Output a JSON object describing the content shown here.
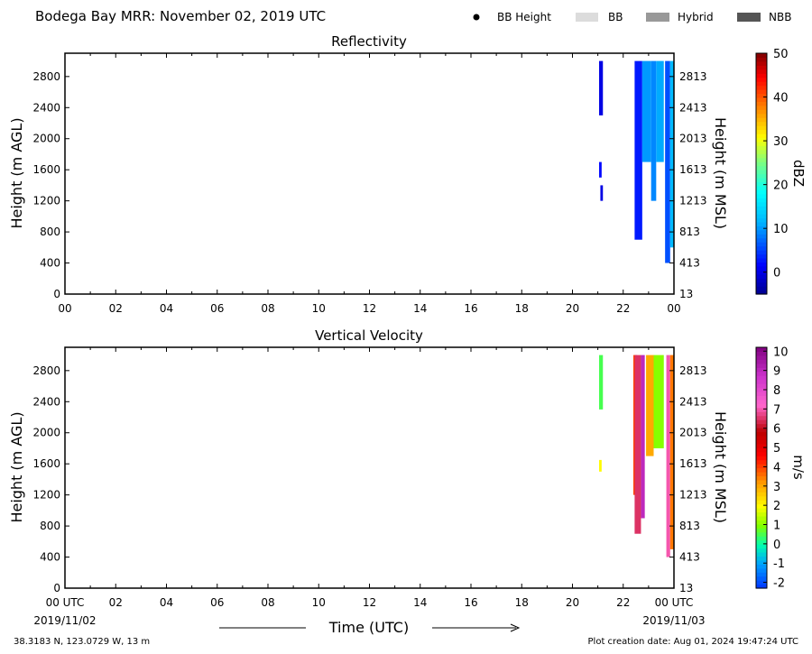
{
  "header": {
    "title": "Bodega Bay MRR:  November 02, 2019 UTC",
    "legend": [
      {
        "label": "BB Height",
        "symbol": "dot",
        "color": "#000000"
      },
      {
        "label": "BB",
        "symbol": "box",
        "color": "#dcdcdc"
      },
      {
        "label": "Hybrid",
        "symbol": "box",
        "color": "#999999"
      },
      {
        "label": "NBB",
        "symbol": "box",
        "color": "#555555"
      }
    ]
  },
  "footer": {
    "location": "38.3183 N, 123.0729 W, 13 m",
    "creation": "Plot creation date: Aug 01, 2024 19:47:24 UTC",
    "xaxis_label": "Time (UTC)",
    "start_date": "2019/11/02",
    "end_date": "2019/11/03"
  },
  "chart_data": [
    {
      "type": "heatmap",
      "title": "Reflectivity",
      "ylabel": "Height (m AGL)",
      "ylabel_right": "Height (m MSL)",
      "x_ticks": [
        "00",
        "02",
        "04",
        "06",
        "08",
        "10",
        "12",
        "14",
        "16",
        "18",
        "20",
        "22",
        "00"
      ],
      "xlim": [
        0,
        24
      ],
      "ylim": [
        0,
        3100
      ],
      "y_ticks_left": [
        0,
        400,
        800,
        1200,
        1600,
        2000,
        2400,
        2800
      ],
      "y_ticks_right": [
        13,
        413,
        813,
        1213,
        1613,
        2013,
        2413,
        2813
      ],
      "colorbar": {
        "label": "dBZ",
        "ticks": [
          0,
          10,
          20,
          30,
          40,
          50
        ],
        "range": [
          -5,
          50
        ]
      },
      "echoes": [
        {
          "t_start": 21.05,
          "t_end": 21.2,
          "h_min": 2300,
          "h_max": 3000,
          "value": 0
        },
        {
          "t_start": 21.05,
          "t_end": 21.15,
          "h_min": 1500,
          "h_max": 1700,
          "value": 2
        },
        {
          "t_start": 21.1,
          "t_end": 21.2,
          "h_min": 1200,
          "h_max": 1400,
          "value": 0
        },
        {
          "t_start": 22.45,
          "t_end": 22.75,
          "h_min": 700,
          "h_max": 3000,
          "value": 3
        },
        {
          "t_start": 22.75,
          "t_end": 23.1,
          "h_min": 1700,
          "h_max": 3000,
          "value": 10
        },
        {
          "t_start": 23.1,
          "t_end": 23.3,
          "h_min": 1200,
          "h_max": 3000,
          "value": 9
        },
        {
          "t_start": 23.3,
          "t_end": 23.6,
          "h_min": 1700,
          "h_max": 3000,
          "value": 11
        },
        {
          "t_start": 23.65,
          "t_end": 23.85,
          "h_min": 400,
          "h_max": 3000,
          "value": 6
        },
        {
          "t_start": 23.85,
          "t_end": 24.0,
          "h_min": 600,
          "h_max": 3000,
          "value": 12
        }
      ]
    },
    {
      "type": "heatmap",
      "title": "Vertical Velocity",
      "ylabel": "Height (m AGL)",
      "ylabel_right": "Height (m MSL)",
      "x_ticks": [
        "00 UTC",
        "02",
        "04",
        "06",
        "08",
        "10",
        "12",
        "14",
        "16",
        "18",
        "20",
        "22",
        "00 UTC"
      ],
      "xlim": [
        0,
        24
      ],
      "ylim": [
        0,
        3100
      ],
      "y_ticks_left": [
        0,
        400,
        800,
        1200,
        1600,
        2000,
        2400,
        2800
      ],
      "y_ticks_right": [
        13,
        413,
        813,
        1213,
        1613,
        2013,
        2413,
        2813
      ],
      "colorbar": {
        "label": "m/s",
        "ticks": [
          -2,
          -1,
          0,
          1,
          2,
          3,
          4,
          5,
          6,
          7,
          8,
          9,
          10
        ],
        "range": [
          -2.3,
          10.2
        ]
      },
      "echoes": [
        {
          "t_start": 21.05,
          "t_end": 21.2,
          "h_min": 2300,
          "h_max": 3000,
          "value": 0.5
        },
        {
          "t_start": 21.05,
          "t_end": 21.15,
          "h_min": 1500,
          "h_max": 1650,
          "value": 2
        },
        {
          "t_start": 22.4,
          "t_end": 22.55,
          "h_min": 1200,
          "h_max": 3000,
          "value": 4
        },
        {
          "t_start": 22.45,
          "t_end": 22.7,
          "h_min": 700,
          "h_max": 3000,
          "value": 6.5
        },
        {
          "t_start": 22.7,
          "t_end": 22.85,
          "h_min": 900,
          "h_max": 3000,
          "value": 9
        },
        {
          "t_start": 22.9,
          "t_end": 23.2,
          "h_min": 1700,
          "h_max": 3000,
          "value": 3
        },
        {
          "t_start": 23.2,
          "t_end": 23.6,
          "h_min": 1800,
          "h_max": 3000,
          "value": 1
        },
        {
          "t_start": 23.7,
          "t_end": 23.85,
          "h_min": 400,
          "h_max": 3000,
          "value": 7
        },
        {
          "t_start": 23.85,
          "t_end": 24.0,
          "h_min": 500,
          "h_max": 3000,
          "value": 3.5
        }
      ]
    }
  ]
}
